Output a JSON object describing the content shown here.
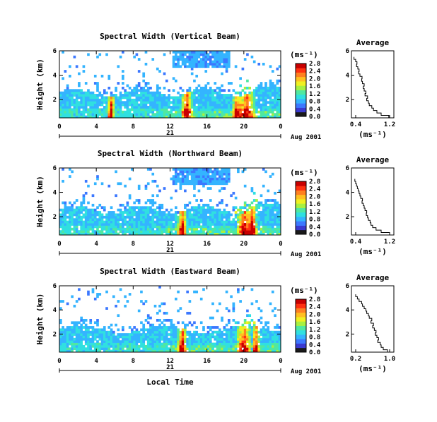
{
  "date_label": "Aug 2001",
  "x_axis_label": "Local Time",
  "day_label": "21",
  "colorbar_unit": "(ms⁻¹)",
  "profile_title": "Average",
  "profile_unit": "(ms⁻¹)",
  "y_axis_label": "Height (km)",
  "colormap": [
    "#1a1a1a",
    "#3a3ad0",
    "#3c78ff",
    "#34b4ff",
    "#30e0e0",
    "#50e8a0",
    "#a8f040",
    "#f0f020",
    "#ffc020",
    "#ff8020",
    "#ff3010",
    "#c80000"
  ],
  "chart_data": [
    {
      "type": "heatmap",
      "title": "Spectral Width (Vertical Beam)",
      "xlabel": "",
      "ylabel": "Height (km)",
      "xlim": [
        0,
        24
      ],
      "ylim": [
        0.5,
        6
      ],
      "x_ticks": [
        "0",
        "4",
        "8",
        "12",
        "16",
        "20",
        "0"
      ],
      "y_ticks": [
        "2",
        "4",
        "6"
      ],
      "colorbar_ticks": [
        "0.0",
        "0.4",
        "0.8",
        "1.2",
        "1.6",
        "2.0",
        "2.4",
        "2.8"
      ],
      "colorbar_range": [
        0,
        2.8
      ],
      "profile": {
        "title": "Average",
        "xlabel": "(ms⁻¹)",
        "x_ticks": [
          "0.4",
          "1.2"
        ],
        "xlim": [
          0.3,
          1.3
        ],
        "y_ticks": [
          "2",
          "4",
          "6"
        ],
        "ylim": [
          0.5,
          6
        ],
        "heights": [
          0.6,
          0.8,
          1.0,
          1.2,
          1.4,
          1.6,
          1.8,
          2.0,
          2.2,
          2.4,
          2.6,
          2.8,
          3.0,
          3.2,
          3.4,
          3.6,
          3.8,
          4.0,
          4.2,
          4.4,
          4.6,
          4.8,
          5.0,
          5.2,
          5.4
        ],
        "values": [
          1.18,
          1.0,
          0.9,
          0.82,
          0.78,
          0.72,
          0.7,
          0.66,
          0.68,
          0.62,
          0.64,
          0.6,
          0.58,
          0.6,
          0.56,
          0.54,
          0.55,
          0.5,
          0.47,
          0.48,
          0.45,
          0.42,
          0.43,
          0.4,
          0.36
        ]
      }
    },
    {
      "type": "heatmap",
      "title": "Spectral Width (Northward Beam)",
      "xlabel": "",
      "ylabel": "Height (km)",
      "xlim": [
        0,
        24
      ],
      "ylim": [
        0.5,
        6
      ],
      "x_ticks": [
        "0",
        "4",
        "8",
        "12",
        "16",
        "20",
        "0"
      ],
      "y_ticks": [
        "2",
        "4",
        "6"
      ],
      "colorbar_ticks": [
        "0.0",
        "0.4",
        "0.8",
        "1.2",
        "1.6",
        "2.0",
        "2.4",
        "2.8"
      ],
      "colorbar_range": [
        0,
        2.8
      ],
      "profile": {
        "title": "Average",
        "xlabel": "(ms⁻¹)",
        "x_ticks": [
          "0.4",
          "1.2"
        ],
        "xlim": [
          0.3,
          1.3
        ],
        "y_ticks": [
          "2",
          "4",
          "6"
        ],
        "ylim": [
          0.5,
          6
        ],
        "heights": [
          0.6,
          0.8,
          1.0,
          1.2,
          1.4,
          1.6,
          1.8,
          2.0,
          2.2,
          2.4,
          2.6,
          2.8,
          3.0,
          3.2,
          3.4,
          3.6,
          3.8,
          4.0,
          4.2,
          4.4,
          4.6,
          4.8,
          5.0
        ],
        "values": [
          1.2,
          1.0,
          0.88,
          0.8,
          0.76,
          0.74,
          0.7,
          0.68,
          0.65,
          0.66,
          0.62,
          0.6,
          0.58,
          0.55,
          0.56,
          0.52,
          0.5,
          0.48,
          0.46,
          0.44,
          0.42,
          0.4,
          0.38
        ]
      }
    },
    {
      "type": "heatmap",
      "title": "Spectral Width (Eastward Beam)",
      "xlabel": "Local Time",
      "ylabel": "Height (km)",
      "xlim": [
        0,
        24
      ],
      "ylim": [
        0.5,
        6
      ],
      "x_ticks": [
        "0",
        "4",
        "8",
        "12",
        "16",
        "20",
        "0"
      ],
      "y_ticks": [
        "2",
        "4",
        "6"
      ],
      "colorbar_ticks": [
        "0.0",
        "0.4",
        "0.8",
        "1.2",
        "1.6",
        "2.0",
        "2.4",
        "2.8"
      ],
      "colorbar_range": [
        0,
        2.8
      ],
      "profile": {
        "title": "Average",
        "xlabel": "(ms⁻¹)",
        "x_ticks": [
          "0.2",
          "1.0"
        ],
        "xlim": [
          0.1,
          1.1
        ],
        "y_ticks": [
          "2",
          "4",
          "6"
        ],
        "ylim": [
          0.5,
          6
        ],
        "heights": [
          0.6,
          0.8,
          1.0,
          1.2,
          1.4,
          1.6,
          1.8,
          2.0,
          2.2,
          2.4,
          2.6,
          2.8,
          3.0,
          3.2,
          3.4,
          3.6,
          3.8,
          4.0,
          4.2,
          4.4,
          4.6,
          4.8,
          5.0,
          5.2
        ],
        "values": [
          0.95,
          0.85,
          0.8,
          0.78,
          0.72,
          0.74,
          0.7,
          0.66,
          0.68,
          0.64,
          0.6,
          0.62,
          0.56,
          0.58,
          0.52,
          0.5,
          0.46,
          0.44,
          0.4,
          0.36,
          0.34,
          0.28,
          0.24,
          0.2
        ]
      }
    }
  ]
}
